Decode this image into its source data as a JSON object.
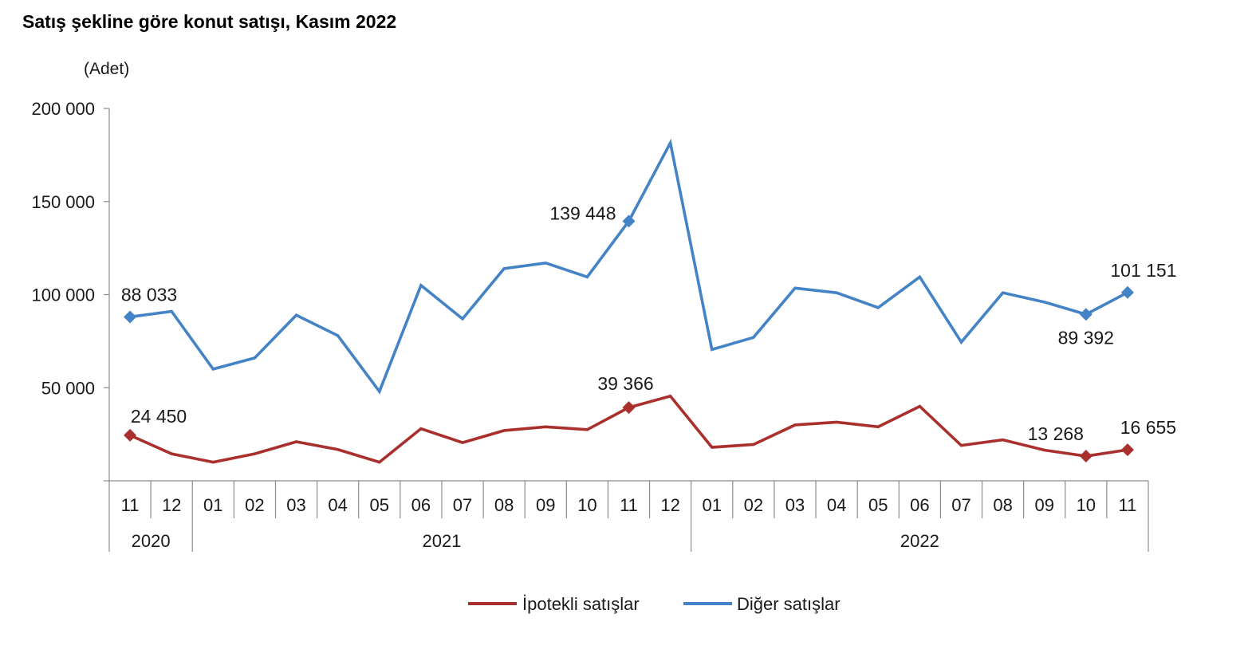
{
  "chart_data": {
    "type": "line",
    "title": "Satış şekline göre konut satışı, Kasım 2022",
    "ylabel": "(Adet)",
    "xlabel": "",
    "ylim": [
      0,
      200000
    ],
    "yticks": [
      0,
      50000,
      100000,
      150000,
      200000
    ],
    "ytick_labels": [
      "",
      "50 000",
      "100 000",
      "150 000",
      "200 000"
    ],
    "grid": false,
    "legend_position": "bottom",
    "categories": [
      "11",
      "12",
      "01",
      "02",
      "03",
      "04",
      "05",
      "06",
      "07",
      "08",
      "09",
      "10",
      "11",
      "12",
      "01",
      "02",
      "03",
      "04",
      "05",
      "06",
      "07",
      "08",
      "09",
      "10",
      "11"
    ],
    "year_groups": [
      {
        "label": "2020",
        "start": 0,
        "end": 1
      },
      {
        "label": "2021",
        "start": 2,
        "end": 13
      },
      {
        "label": "2022",
        "start": 14,
        "end": 24
      }
    ],
    "series": [
      {
        "name": "İpotekli satışlar",
        "color": "#A9302C",
        "values": [
          24450,
          14500,
          10000,
          14500,
          21000,
          16800,
          10000,
          28000,
          20500,
          27000,
          29000,
          27500,
          39366,
          45500,
          18000,
          19500,
          30000,
          31500,
          29000,
          40000,
          19000,
          22000,
          16500,
          13268,
          16655
        ],
        "markers": [
          0,
          12,
          23,
          24
        ],
        "point_labels": [
          {
            "index": 0,
            "text": "24 450"
          },
          {
            "index": 12,
            "text": "39 366"
          },
          {
            "index": 23,
            "text": "13 268"
          },
          {
            "index": 24,
            "text": "16 655"
          }
        ]
      },
      {
        "name": "Diğer satışlar",
        "color": "#4483C5",
        "values": [
          88033,
          91000,
          60000,
          66000,
          89000,
          78000,
          48000,
          105000,
          87000,
          114000,
          117000,
          109500,
          139448,
          181500,
          70500,
          77000,
          103500,
          101000,
          93000,
          109500,
          74500,
          101000,
          96000,
          89392,
          101151
        ],
        "markers": [
          0,
          12,
          23,
          24
        ],
        "point_labels": [
          {
            "index": 0,
            "text": "88 033"
          },
          {
            "index": 12,
            "text": "139 448"
          },
          {
            "index": 23,
            "text": "89 392"
          },
          {
            "index": 24,
            "text": "101 151"
          }
        ]
      }
    ]
  }
}
